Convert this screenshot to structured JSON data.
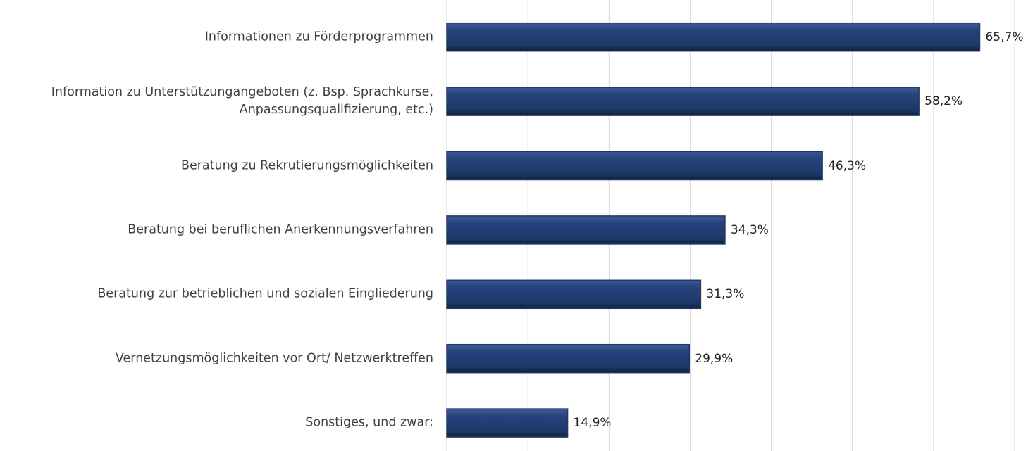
{
  "chart_data": {
    "type": "bar",
    "orientation": "horizontal",
    "categories": [
      "Informationen zu Förderprogrammen",
      "Information zu Unterstützungangeboten (z. Bsp. Sprachkurse, Anpassungsqualifizierung, etc.)",
      "Beratung zu Rekrutierungsmöglichkeiten",
      "Beratung bei beruflichen Anerkennungsverfahren",
      "Beratung zur betrieblichen und sozialen Eingliederung",
      "Vernetzungsmöglichkeiten vor Ort/ Netzwerktreffen",
      "Sonstiges, und zwar:"
    ],
    "values": [
      65.7,
      58.2,
      46.3,
      34.3,
      31.3,
      29.9,
      14.9
    ],
    "value_labels": [
      "65,7%",
      "58,2%",
      "46,3%",
      "34,3%",
      "31,3%",
      "29,9%",
      "14,9%"
    ],
    "color": "#203864",
    "xlim": [
      0,
      70
    ],
    "xticks": [
      0,
      10,
      20,
      30,
      40,
      50,
      60,
      70
    ],
    "grid": true
  }
}
